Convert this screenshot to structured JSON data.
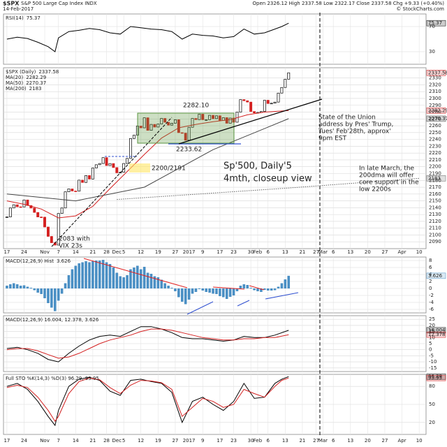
{
  "header": {
    "symbol": "$SPX",
    "name": "S&P 500 Large Cap Index INDX",
    "date": "14-Feb-2017",
    "quote": "Open 2326.12 High 2337.58 Low 2322.17 Close 2337.58 Chg +9.33 (+0.40%)",
    "credit": "© StockCharts.com"
  },
  "chart_data": [
    {
      "type": "line",
      "ylim": [
        10,
        90
      ],
      "yticks": [
        30,
        70
      ],
      "grid": true,
      "x": [
        0,
        3,
        6,
        9,
        12,
        14,
        15,
        18,
        21,
        24,
        27,
        30,
        33,
        36,
        39,
        42,
        45,
        48,
        51,
        54,
        57,
        60,
        63,
        66,
        69,
        72,
        75,
        78,
        80,
        82
      ],
      "series": [
        {
          "name": "RSI(14)",
          "color": "#000000",
          "values": [
            50,
            53,
            51,
            45,
            38,
            30,
            52,
            62,
            64,
            67,
            65,
            60,
            58,
            70,
            68,
            66,
            65,
            62,
            50,
            58,
            56,
            55,
            52,
            54,
            66,
            58,
            60,
            66,
            70,
            75.37
          ]
        }
      ]
    },
    {
      "type": "candlestick",
      "ylim": [
        2080,
        2345
      ],
      "xlim": [
        -1,
        122
      ],
      "grid": true,
      "yticks": [
        2090,
        2100,
        2110,
        2120,
        2130,
        2140,
        2150,
        2160,
        2170,
        2180,
        2190,
        2200,
        2210,
        2220,
        2230,
        2240,
        2250,
        2260,
        2270,
        2280,
        2290,
        2300,
        2310,
        2320,
        2330
      ],
      "xticks": [
        {
          "value": 0,
          "label": "17"
        },
        {
          "value": 5,
          "label": "24"
        },
        {
          "value": 11,
          "label": "Nov"
        },
        {
          "value": 15,
          "label": "7"
        },
        {
          "value": 20,
          "label": "14"
        },
        {
          "value": 25,
          "label": "21"
        },
        {
          "value": 29,
          "label": "28"
        },
        {
          "value": 32,
          "label": "Dec"
        },
        {
          "value": 34,
          "label": "5"
        },
        {
          "value": 39,
          "label": "12"
        },
        {
          "value": 44,
          "label": "19"
        },
        {
          "value": 49,
          "label": "27"
        },
        {
          "value": 53,
          "label": "2017"
        },
        {
          "value": 57,
          "label": "9"
        },
        {
          "value": 62,
          "label": "17"
        },
        {
          "value": 66,
          "label": "23"
        },
        {
          "value": 71,
          "label": "30"
        },
        {
          "value": 73,
          "label": "Feb"
        },
        {
          "value": 76,
          "label": "6"
        },
        {
          "value": 81,
          "label": "13"
        },
        {
          "value": 86,
          "label": "21"
        },
        {
          "value": 90,
          "label": "27"
        },
        {
          "value": 92,
          "label": "Mar"
        },
        {
          "value": 95,
          "label": "6"
        },
        {
          "value": 100,
          "label": "13"
        },
        {
          "value": 105,
          "label": "20"
        },
        {
          "value": 110,
          "label": "27"
        },
        {
          "value": 115,
          "label": "Apr"
        },
        {
          "value": 120,
          "label": "10"
        }
      ],
      "x": [
        0,
        1,
        2,
        3,
        4,
        5,
        6,
        7,
        8,
        9,
        10,
        11,
        12,
        13,
        14,
        15,
        16,
        17,
        18,
        19,
        20,
        21,
        22,
        23,
        24,
        25,
        26,
        27,
        28,
        29,
        30,
        31,
        32,
        33,
        34,
        35,
        36,
        37,
        38,
        39,
        40,
        41,
        42,
        43,
        44,
        45,
        46,
        47,
        48,
        49,
        50,
        51,
        52,
        53,
        54,
        55,
        56,
        57,
        58,
        59,
        60,
        61,
        62,
        63,
        64,
        65,
        66,
        67,
        68,
        69,
        70,
        71,
        72,
        73,
        74,
        75,
        76,
        77,
        78,
        79,
        80,
        81,
        82
      ],
      "series": [
        {
          "name": "$SPX (Daily)",
          "color": "#d42020",
          "values": [
            2126.5,
            2139.6,
            2144.29,
            2141.34,
            2141.16,
            2151.33,
            2143.16,
            2139.43,
            2133.04,
            2126.41,
            2126.15,
            2111.72,
            2097.94,
            2088.66,
            2085.18,
            2131.52,
            2139.56,
            2163.26,
            2167.48,
            2164.45,
            2164.2,
            2180.39,
            2176.94,
            2187.12,
            2181.9,
            2198.18,
            2202.94,
            2204.72,
            2213.35,
            2201.72,
            2204.66,
            2198.81,
            2191.08,
            2191.95,
            2204.71,
            2212.23,
            2241.35,
            2246.19,
            2259.53,
            2256.96,
            2271.72,
            2253.28,
            2262.03,
            2258.07,
            2262.53,
            2270.76,
            2265.18,
            2260.96,
            2263.79,
            2268.88,
            2249.92,
            2249.26,
            2238.83,
            2257.83,
            2270.75,
            2269.0,
            2276.98,
            2268.9,
            2268.9,
            2275.32,
            2270.44,
            2274.64,
            2267.89,
            2271.89,
            2263.69,
            2271.31,
            2265.2,
            2280.07,
            2298.37,
            2296.68,
            2294.69,
            2280.9,
            2278.87,
            2279.55,
            2280.85,
            2297.42,
            2292.56,
            2293.08,
            2294.67,
            2307.87,
            2316.1,
            2328.25,
            2337.58
          ]
        },
        {
          "name": "MA(20)",
          "color": "#d42020",
          "x": [
            0,
            5,
            10,
            15,
            20,
            25,
            30,
            35,
            40,
            45,
            50,
            55,
            60,
            65,
            70,
            75,
            82
          ],
          "values": [
            2150,
            2145,
            2138,
            2125,
            2128,
            2142,
            2168,
            2193,
            2218,
            2242,
            2257,
            2262,
            2266,
            2269,
            2276,
            2280,
            2282.29
          ]
        },
        {
          "name": "MA(50)",
          "color": "#444444",
          "x": [
            0,
            20,
            40,
            60,
            82
          ],
          "values": [
            2160,
            2150,
            2170,
            2225,
            2270.37
          ]
        },
        {
          "name": "MA(200)",
          "color": "#666666",
          "dashed": true,
          "x": [
            32,
            82,
            120
          ],
          "values": [
            2152,
            2168.86,
            2183
          ]
        }
      ],
      "annotations": [
        {
          "lines": [
            "2282.10"
          ]
        },
        {
          "lines": [
            "2233.62"
          ]
        },
        {
          "lines": [
            "2200/2191"
          ]
        },
        {
          "lines": [
            "2083 with",
            "VIX 23s"
          ]
        },
        {
          "lines": [
            "Sp'500, Daily'5",
            "4mth, closeup view"
          ]
        },
        {
          "lines": [
            "State of the Union",
            "address by Pres' Trump,",
            "Tues' Feb'28th, approx'",
            "9pm EST"
          ]
        },
        {
          "lines": [
            "In late March, the",
            "200dma will offer",
            "core support in the",
            "low 2200s"
          ]
        }
      ]
    },
    {
      "type": "bar",
      "ylim": [
        -7,
        9
      ],
      "yticks": [
        -6,
        -4,
        -2,
        0,
        2,
        4,
        6,
        8
      ],
      "grid": true,
      "x": [
        0,
        1,
        2,
        3,
        4,
        5,
        6,
        7,
        8,
        9,
        10,
        11,
        12,
        13,
        14,
        15,
        16,
        17,
        18,
        19,
        20,
        21,
        22,
        23,
        24,
        25,
        26,
        27,
        28,
        29,
        30,
        31,
        32,
        33,
        34,
        35,
        36,
        37,
        38,
        39,
        40,
        41,
        42,
        43,
        44,
        45,
        46,
        47,
        48,
        49,
        50,
        51,
        52,
        53,
        54,
        55,
        56,
        57,
        58,
        59,
        60,
        61,
        62,
        63,
        64,
        65,
        66,
        67,
        68,
        69,
        70,
        71,
        72,
        73,
        74,
        75,
        76,
        77,
        78,
        79,
        80,
        81,
        82
      ],
      "series": [
        {
          "name": "MACD(12,26,9) Hist",
          "color": "#4a8fc4",
          "values": [
            0.8,
            1.2,
            1.5,
            1.2,
            0.8,
            0.9,
            0.5,
            0.2,
            -0.5,
            -1.2,
            -1.6,
            -2.8,
            -4.2,
            -5.5,
            -6.5,
            -3.5,
            -1.5,
            1.5,
            3.8,
            5.5,
            6.5,
            7.2,
            7.5,
            7.8,
            7.5,
            7.8,
            8.0,
            8.0,
            8.2,
            7.5,
            7.0,
            6.0,
            4.5,
            3.5,
            3.2,
            3.8,
            5.5,
            6.0,
            6.5,
            5.5,
            6.2,
            4.5,
            4.2,
            3.5,
            3.2,
            2.5,
            1.5,
            0.8,
            0.2,
            -0.8,
            -2.5,
            -3.8,
            -4.5,
            -3.2,
            -1.5,
            -1.0,
            -0.2,
            -0.6,
            -1.0,
            -1.2,
            -1.5,
            -1.6,
            -2.2,
            -2.5,
            -3.0,
            -2.4,
            -2.0,
            -0.8,
            0.8,
            1.2,
            1.0,
            0.2,
            -0.5,
            -0.8,
            -1.0,
            -0.4,
            -0.6,
            -0.6,
            -0.5,
            0.5,
            1.5,
            2.6,
            3.626
          ]
        }
      ]
    },
    {
      "type": "line",
      "title": "MACD(12,26,9) 16.004, 12.378, 3.626",
      "ylim": [
        -18,
        28
      ],
      "yticks": [
        -15,
        -10,
        -5,
        0,
        5,
        10,
        15,
        20,
        25
      ],
      "grid": true,
      "x": [
        0,
        3,
        6,
        9,
        12,
        15,
        18,
        21,
        24,
        27,
        30,
        33,
        36,
        39,
        42,
        45,
        48,
        51,
        54,
        57,
        60,
        63,
        66,
        69,
        72,
        75,
        78,
        82
      ],
      "series": [
        {
          "color": "#000000",
          "values": [
            1,
            2,
            0,
            -3,
            -8,
            -10,
            -3,
            3,
            8,
            11,
            12,
            11,
            15,
            19,
            19,
            17,
            14,
            10,
            9,
            9,
            8,
            7,
            8,
            11,
            10,
            10,
            12,
            16.004
          ]
        },
        {
          "color": "#d42020",
          "values": [
            0,
            1,
            1,
            -1,
            -4,
            -7,
            -6,
            -3,
            1,
            5,
            8,
            10,
            12,
            15,
            17,
            17,
            16,
            14,
            12,
            10,
            9,
            8,
            8,
            9,
            9,
            10,
            10,
            12.378
          ]
        }
      ]
    },
    {
      "type": "line",
      "title": "Full STO %K(14,3) %D(3) 96.29, 93.95",
      "ylim": [
        0,
        100
      ],
      "yticks": [
        20,
        50,
        80
      ],
      "grid": true,
      "x": [
        0,
        3,
        6,
        9,
        12,
        14,
        15,
        18,
        21,
        24,
        27,
        30,
        33,
        36,
        39,
        42,
        45,
        48,
        51,
        54,
        57,
        60,
        63,
        66,
        69,
        72,
        75,
        78,
        80,
        82
      ],
      "series": [
        {
          "color": "#000000",
          "values": [
            80,
            85,
            75,
            55,
            30,
            15,
            40,
            80,
            92,
            95,
            90,
            72,
            65,
            90,
            92,
            88,
            85,
            70,
            20,
            55,
            62,
            50,
            40,
            55,
            85,
            60,
            62,
            85,
            92,
            96.29
          ]
        },
        {
          "color": "#d42020",
          "values": [
            78,
            82,
            78,
            62,
            40,
            22,
            30,
            68,
            88,
            94,
            91,
            78,
            68,
            82,
            90,
            89,
            86,
            75,
            30,
            45,
            60,
            55,
            45,
            50,
            75,
            68,
            62,
            80,
            90,
            93.95
          ]
        }
      ]
    }
  ]
}
